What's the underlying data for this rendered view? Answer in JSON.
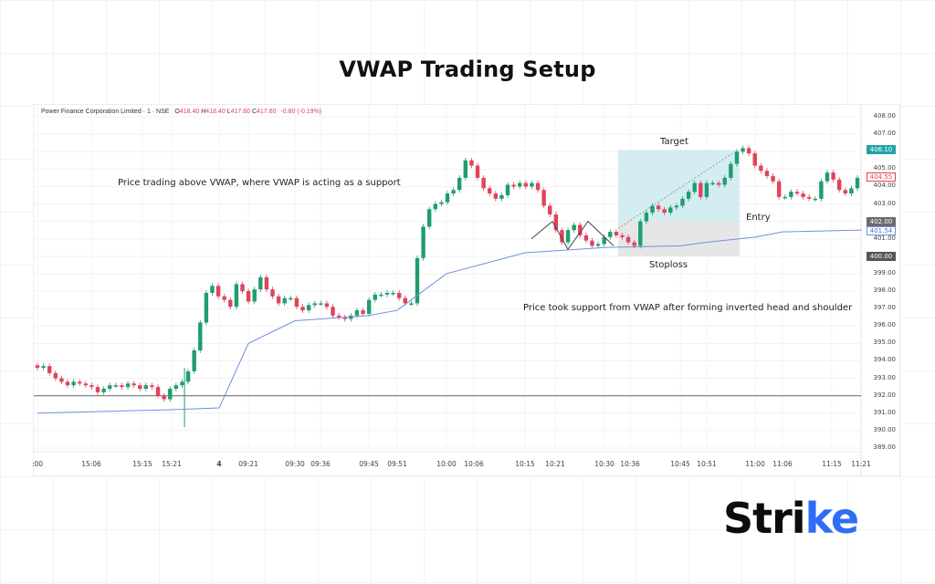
{
  "page": {
    "title": "VWAP Trading Setup",
    "logo_text_main": "Stri",
    "logo_text_accent": "ke"
  },
  "chart": {
    "legend": {
      "symbol": "Power Finance Corporation Limited · 1 · NSE",
      "open_label": "O",
      "open": "418.40",
      "high_label": "H",
      "high": "418.40",
      "low_label": "L",
      "low": "417.60",
      "close_label": "C",
      "close": "417.60",
      "change": "-0.80 (-0.19%)"
    },
    "annotations": {
      "vwap_support": "Price trading above VWAP, where VWAP is acting as a support",
      "inverted_hs": "Price took support from VWAP after forming inverted head and shoulder",
      "target": "Target",
      "entry": "Entry",
      "stoploss": "Stoploss"
    },
    "price_tags": {
      "target": "406.10",
      "last": "404.55",
      "entry": "402.00",
      "vwap": "401.54",
      "stoploss": "400.00"
    },
    "colors": {
      "up": "#1f9d6f",
      "down": "#e0435a",
      "vwap": "#6f8fe0",
      "target_zone": "#cdeaf0",
      "stop_zone": "#e3e3e3",
      "target_tag": "#22a3a8",
      "entry_tag": "#6b6b6b"
    }
  },
  "chart_data": {
    "type": "candlestick",
    "title": "VWAP Trading Setup",
    "instrument": "Power Finance Corporation Limited · 1 · NSE",
    "xlabel": "",
    "ylabel": "",
    "y_ticks": [
      "408.00",
      "407.00",
      "406.00",
      "405.00",
      "404.00",
      "403.00",
      "402.00",
      "401.00",
      "400.00",
      "399.00",
      "398.00",
      "397.00",
      "396.00",
      "395.00",
      "394.00",
      "393.00",
      "392.00",
      "391.00",
      "390.00",
      "389.00"
    ],
    "ylim": [
      388.7,
      408.6
    ],
    "x_ticks": [
      ":00",
      "15:06",
      "15:15",
      "15:21",
      "4",
      "09:21",
      "09:30",
      "09:36",
      "09:45",
      "09:51",
      "10:00",
      "10:06",
      "10:15",
      "10:21",
      "10:30",
      "10:36",
      "10:45",
      "10:51",
      "11:00",
      "11:06",
      "11:15",
      "11:21"
    ],
    "series": [
      {
        "name": "VWAP",
        "type": "line",
        "points_approx": [
          [
            ":00",
            391.0
          ],
          [
            "15:21",
            391.2
          ],
          [
            "4",
            391.3
          ],
          [
            "09:21",
            395.0
          ],
          [
            "09:30",
            396.3
          ],
          [
            "09:45",
            396.6
          ],
          [
            "09:51",
            396.9
          ],
          [
            "10:00",
            399.0
          ],
          [
            "10:15",
            400.2
          ],
          [
            "10:30",
            400.5
          ],
          [
            "10:45",
            400.6
          ],
          [
            "10:51",
            400.8
          ],
          [
            "11:00",
            401.1
          ],
          [
            "11:06",
            401.4
          ],
          [
            "11:21",
            401.5
          ]
        ]
      },
      {
        "name": "Reference line",
        "type": "hline",
        "value": 392.0
      },
      {
        "name": "Price (close)",
        "type": "candles",
        "closes_approx": [
          393.6,
          393.7,
          393.3,
          393.0,
          392.8,
          392.6,
          392.8,
          392.7,
          392.6,
          392.5,
          392.2,
          392.4,
          392.6,
          392.6,
          392.5,
          392.7,
          392.6,
          392.4,
          392.6,
          392.5,
          392.0,
          391.8,
          392.4,
          392.6,
          392.8,
          393.4,
          394.6,
          396.2,
          397.9,
          398.3,
          397.7,
          397.5,
          397.1,
          398.4,
          398.0,
          397.4,
          398.1,
          398.8,
          398.1,
          397.7,
          397.3,
          397.6,
          397.6,
          397.1,
          396.9,
          397.2,
          397.3,
          397.3,
          397.1,
          396.6,
          396.5,
          396.4,
          396.6,
          396.9,
          396.7,
          397.5,
          397.8,
          397.8,
          397.9,
          397.9,
          397.6,
          397.3,
          397.3,
          399.9,
          401.7,
          402.7,
          403.0,
          403.1,
          403.6,
          403.8,
          404.5,
          405.5,
          405.2,
          404.5,
          403.9,
          403.6,
          403.3,
          403.5,
          404.1,
          404.0,
          404.2,
          404.0,
          404.2,
          403.8,
          402.9,
          402.4,
          401.5,
          400.8,
          401.5,
          401.8,
          401.2,
          400.9,
          400.6,
          400.7,
          401.1,
          401.4,
          401.2,
          401.1,
          400.8,
          400.6,
          402.0,
          402.5,
          402.9,
          402.7,
          402.5,
          402.8,
          402.9,
          403.3,
          403.7,
          404.2,
          403.4,
          404.2,
          404.2,
          404.1,
          404.5,
          405.3,
          406.0,
          406.2,
          405.9,
          405.2,
          404.9,
          404.6,
          404.3,
          403.4,
          403.4,
          403.7,
          403.6,
          403.4,
          403.3,
          403.3,
          404.3,
          404.8,
          404.4,
          403.8,
          403.6,
          403.9,
          404.5
        ]
      },
      {
        "name": "Target zone",
        "type": "rect",
        "y_range": [
          402.0,
          406.1
        ]
      },
      {
        "name": "Stoploss zone",
        "type": "rect",
        "y_range": [
          400.0,
          402.0
        ]
      }
    ],
    "price_labels": {
      "target": 406.1,
      "last": 404.55,
      "entry": 402.0,
      "vwap": 401.54,
      "stoploss": 400.0
    },
    "grid": true,
    "legend_position": "top-left"
  }
}
